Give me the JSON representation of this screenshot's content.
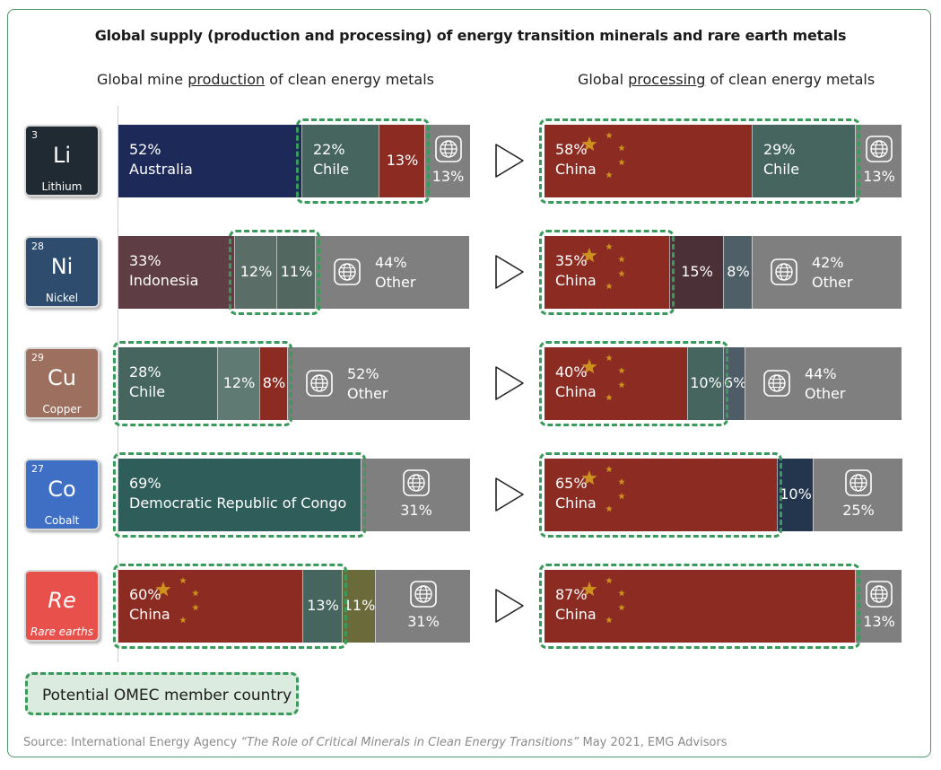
{
  "title": "Global supply (production and processing) of energy transition minerals and rare earth metals",
  "left_header": {
    "before": "Global mine ",
    "underlined": "production",
    "after": " of clean energy metals"
  },
  "right_header": {
    "before": "Global ",
    "underlined": "processing",
    "after": " of clean energy metals"
  },
  "legend": {
    "label": "Potential OMEC member country",
    "color": "#dcebdf",
    "border_color": "#3a9a5c"
  },
  "source": {
    "before": "Source: International Energy Agency ",
    "italic": "“The Role of Critical Minerals in Clean Energy Transitions”",
    "after": " May 2021, EMG Advisors"
  },
  "colors": {
    "china_red": "#8b2b21",
    "other_gray": "#7f7f7f",
    "star_yellow": "#d9a21f",
    "omec_dash": "#3a9a5c"
  },
  "chart_data": {
    "type": "bar",
    "stacked": true,
    "orientation": "horizontal",
    "unit": "%",
    "minerals": [
      {
        "number": "3",
        "symbol": "Li",
        "name": "Lithium",
        "tile_color": "#1f2a33",
        "production": [
          {
            "country": "Australia",
            "label": "52%",
            "value": 52,
            "color": "#1d2a59",
            "omec": false
          },
          {
            "country": "Chile",
            "label": "22%",
            "value": 22,
            "color": "#45655e",
            "omec": true
          },
          {
            "country": "",
            "label": "13%",
            "value": 13,
            "color": "#8b2b21",
            "omec": true
          },
          {
            "country": "",
            "label": "13%",
            "value": 13,
            "color": "#7f7f7f",
            "omec": false,
            "other": true
          }
        ],
        "processing": [
          {
            "country": "China",
            "label": "58%",
            "value": 58,
            "color": "#8b2b21",
            "omec": true
          },
          {
            "country": "Chile",
            "label": "29%",
            "value": 29,
            "color": "#45655e",
            "omec": true
          },
          {
            "country": "",
            "label": "13%",
            "value": 13,
            "color": "#7f7f7f",
            "omec": false,
            "other": true
          }
        ]
      },
      {
        "number": "28",
        "symbol": "Ni",
        "name": "Nickel",
        "tile_color": "#2e4d6e",
        "production": [
          {
            "country": "Indonesia",
            "label": "33%",
            "value": 33,
            "color": "#5f3d44",
            "omec": false
          },
          {
            "country": "",
            "label": "12%",
            "value": 12,
            "color": "#5a6e67",
            "omec": true
          },
          {
            "country": "",
            "label": "11%",
            "value": 11,
            "color": "#51675f",
            "omec": true
          },
          {
            "country": "Other",
            "label": "44%",
            "value": 44,
            "color": "#7f7f7f",
            "omec": false,
            "other": true
          }
        ],
        "processing": [
          {
            "country": "China",
            "label": "35%",
            "value": 35,
            "color": "#8b2b21",
            "omec": true
          },
          {
            "country": "",
            "label": "15%",
            "value": 15,
            "color": "#4c3038",
            "omec": false
          },
          {
            "country": "",
            "label": "8%",
            "value": 8,
            "color": "#4f5f68",
            "omec": false
          },
          {
            "country": "Other",
            "label": "42%",
            "value": 42,
            "color": "#7f7f7f",
            "omec": false,
            "other": true
          }
        ]
      },
      {
        "number": "29",
        "symbol": "Cu",
        "name": "Copper",
        "tile_color": "#9c6f5f",
        "production": [
          {
            "country": "Chile",
            "label": "28%",
            "value": 28,
            "color": "#45655e",
            "omec": true
          },
          {
            "country": "",
            "label": "12%",
            "value": 12,
            "color": "#5f7a73",
            "omec": true
          },
          {
            "country": "",
            "label": "8%",
            "value": 8,
            "color": "#8b2b21",
            "omec": true
          },
          {
            "country": "Other",
            "label": "52%",
            "value": 52,
            "color": "#7f7f7f",
            "omec": false,
            "other": true
          }
        ],
        "processing": [
          {
            "country": "China",
            "label": "40%",
            "value": 40,
            "color": "#8b2b21",
            "omec": true
          },
          {
            "country": "",
            "label": "10%",
            "value": 10,
            "color": "#45655e",
            "omec": true
          },
          {
            "country": "",
            "label": "6%",
            "value": 6,
            "color": "#4d5c66",
            "omec": false
          },
          {
            "country": "Other",
            "label": "44%",
            "value": 44,
            "color": "#7f7f7f",
            "omec": false,
            "other": true
          }
        ]
      },
      {
        "number": "27",
        "symbol": "Co",
        "name": "Cobalt",
        "tile_color": "#3f6fc4",
        "production": [
          {
            "country": "Democratic Republic of Congo",
            "label": "69%",
            "value": 69,
            "color": "#2f5e5a",
            "omec": true
          },
          {
            "country": "",
            "label": "31%",
            "value": 31,
            "color": "#7f7f7f",
            "omec": false,
            "other": true
          }
        ],
        "processing": [
          {
            "country": "China",
            "label": "65%",
            "value": 65,
            "color": "#8b2b21",
            "omec": true
          },
          {
            "country": "",
            "label": "10%",
            "value": 10,
            "color": "#24364d",
            "omec": false
          },
          {
            "country": "",
            "label": "25%",
            "value": 25,
            "color": "#7f7f7f",
            "omec": false,
            "other": true
          }
        ]
      },
      {
        "number": "",
        "symbol": "Re",
        "name": "Rare earths",
        "tile_color": "#e8504c",
        "production": [
          {
            "country": "China",
            "label": "60%",
            "value": 60,
            "color": "#8b2b21",
            "omec": true
          },
          {
            "country": "",
            "label": "13%",
            "value": 13,
            "color": "#45655e",
            "omec": true
          },
          {
            "country": "",
            "label": "11%",
            "value": 11,
            "color": "#6b6a3a",
            "omec": false
          },
          {
            "country": "",
            "label": "31%",
            "value": 31,
            "color": "#7f7f7f",
            "omec": false,
            "other": true
          }
        ],
        "processing": [
          {
            "country": "China",
            "label": "87%",
            "value": 87,
            "color": "#8b2b21",
            "omec": true
          },
          {
            "country": "",
            "label": "13%",
            "value": 13,
            "color": "#7f7f7f",
            "omec": false,
            "other": true
          }
        ]
      }
    ]
  }
}
